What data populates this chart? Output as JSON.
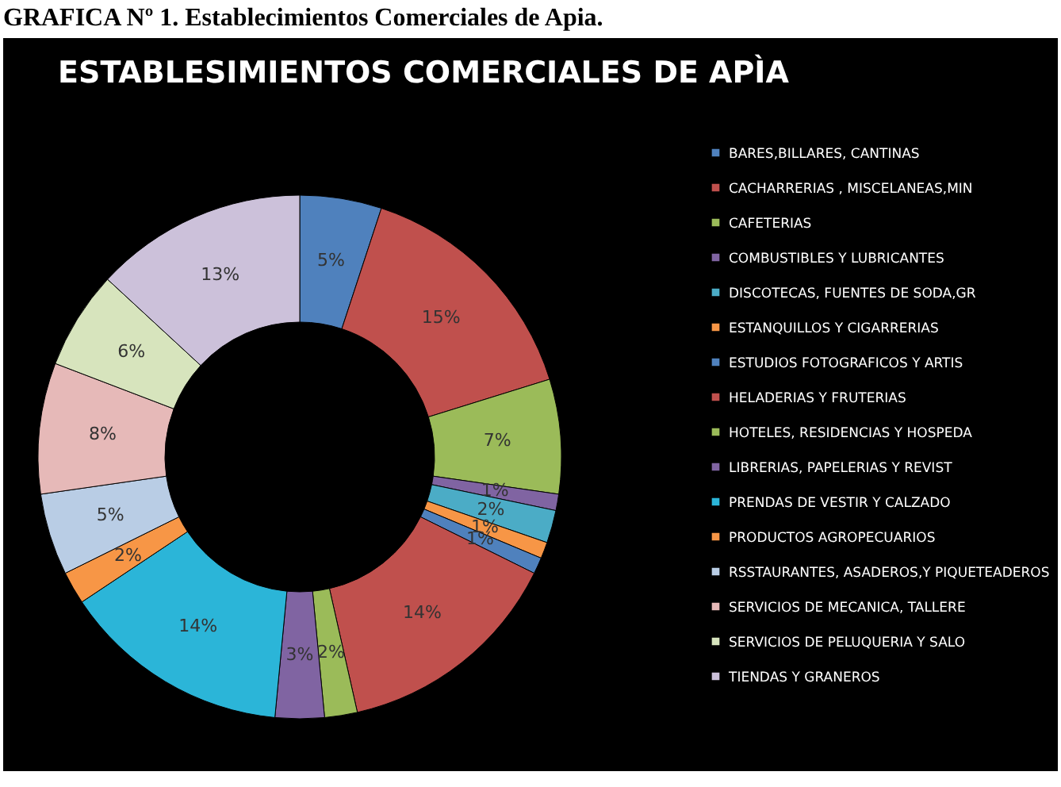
{
  "chart_data": {
    "type": "donut",
    "title": "ESTABLESIMIENTOS COMERCIALES DE APÌA",
    "annotations": [
      "GRAFICA Nº 1. Establecimientos Comerciales de Apia."
    ],
    "categories": [
      "BARES,BILLARES, CANTINAS",
      "CACHARRERIAS , MISCELANEAS,MIN",
      "CAFETERIAS",
      "COMBUSTIBLES Y LUBRICANTES",
      "DISCOTECAS, FUENTES DE SODA,GR",
      "ESTANQUILLOS Y CIGARRERIAS",
      "ESTUDIOS FOTOGRAFICOS  Y ARTIS",
      "HELADERIAS Y FRUTERIAS",
      "HOTELES, RESIDENCIAS Y HOSPEDA",
      "LIBRERIAS, PAPELERIAS Y REVIST",
      "PRENDAS DE VESTIR Y CALZADO",
      "PRODUCTOS  AGROPECUARIOS",
      "RSSTAURANTES, ASADEROS,Y PIQUETEADEROS",
      "SERVICIOS DE MECANICA, TALLERE",
      "SERVICIOS DE PELUQUERIA Y SALO",
      "TIENDAS Y GRANEROS"
    ],
    "values": [
      5,
      15,
      7,
      1,
      2,
      1,
      1,
      14,
      2,
      3,
      14,
      2,
      5,
      8,
      6,
      13
    ],
    "value_labels": [
      "5%",
      "15%",
      "7%",
      "1%",
      "2%",
      "1%",
      "1%",
      "14%",
      "2%",
      "3%",
      "14%",
      "2%",
      "5%",
      "8%",
      "6%",
      "13%"
    ],
    "colors": [
      "#4f81bd",
      "#c0504d",
      "#9bbb59",
      "#8064a2",
      "#4bacc6",
      "#f79646",
      "#4f81bd",
      "#c0504d",
      "#9bbb59",
      "#8064a2",
      "#2bb5d8",
      "#f79646",
      "#b9cde5",
      "#e6b9b8",
      "#d7e4bd",
      "#ccc1da"
    ],
    "legend": "right"
  }
}
